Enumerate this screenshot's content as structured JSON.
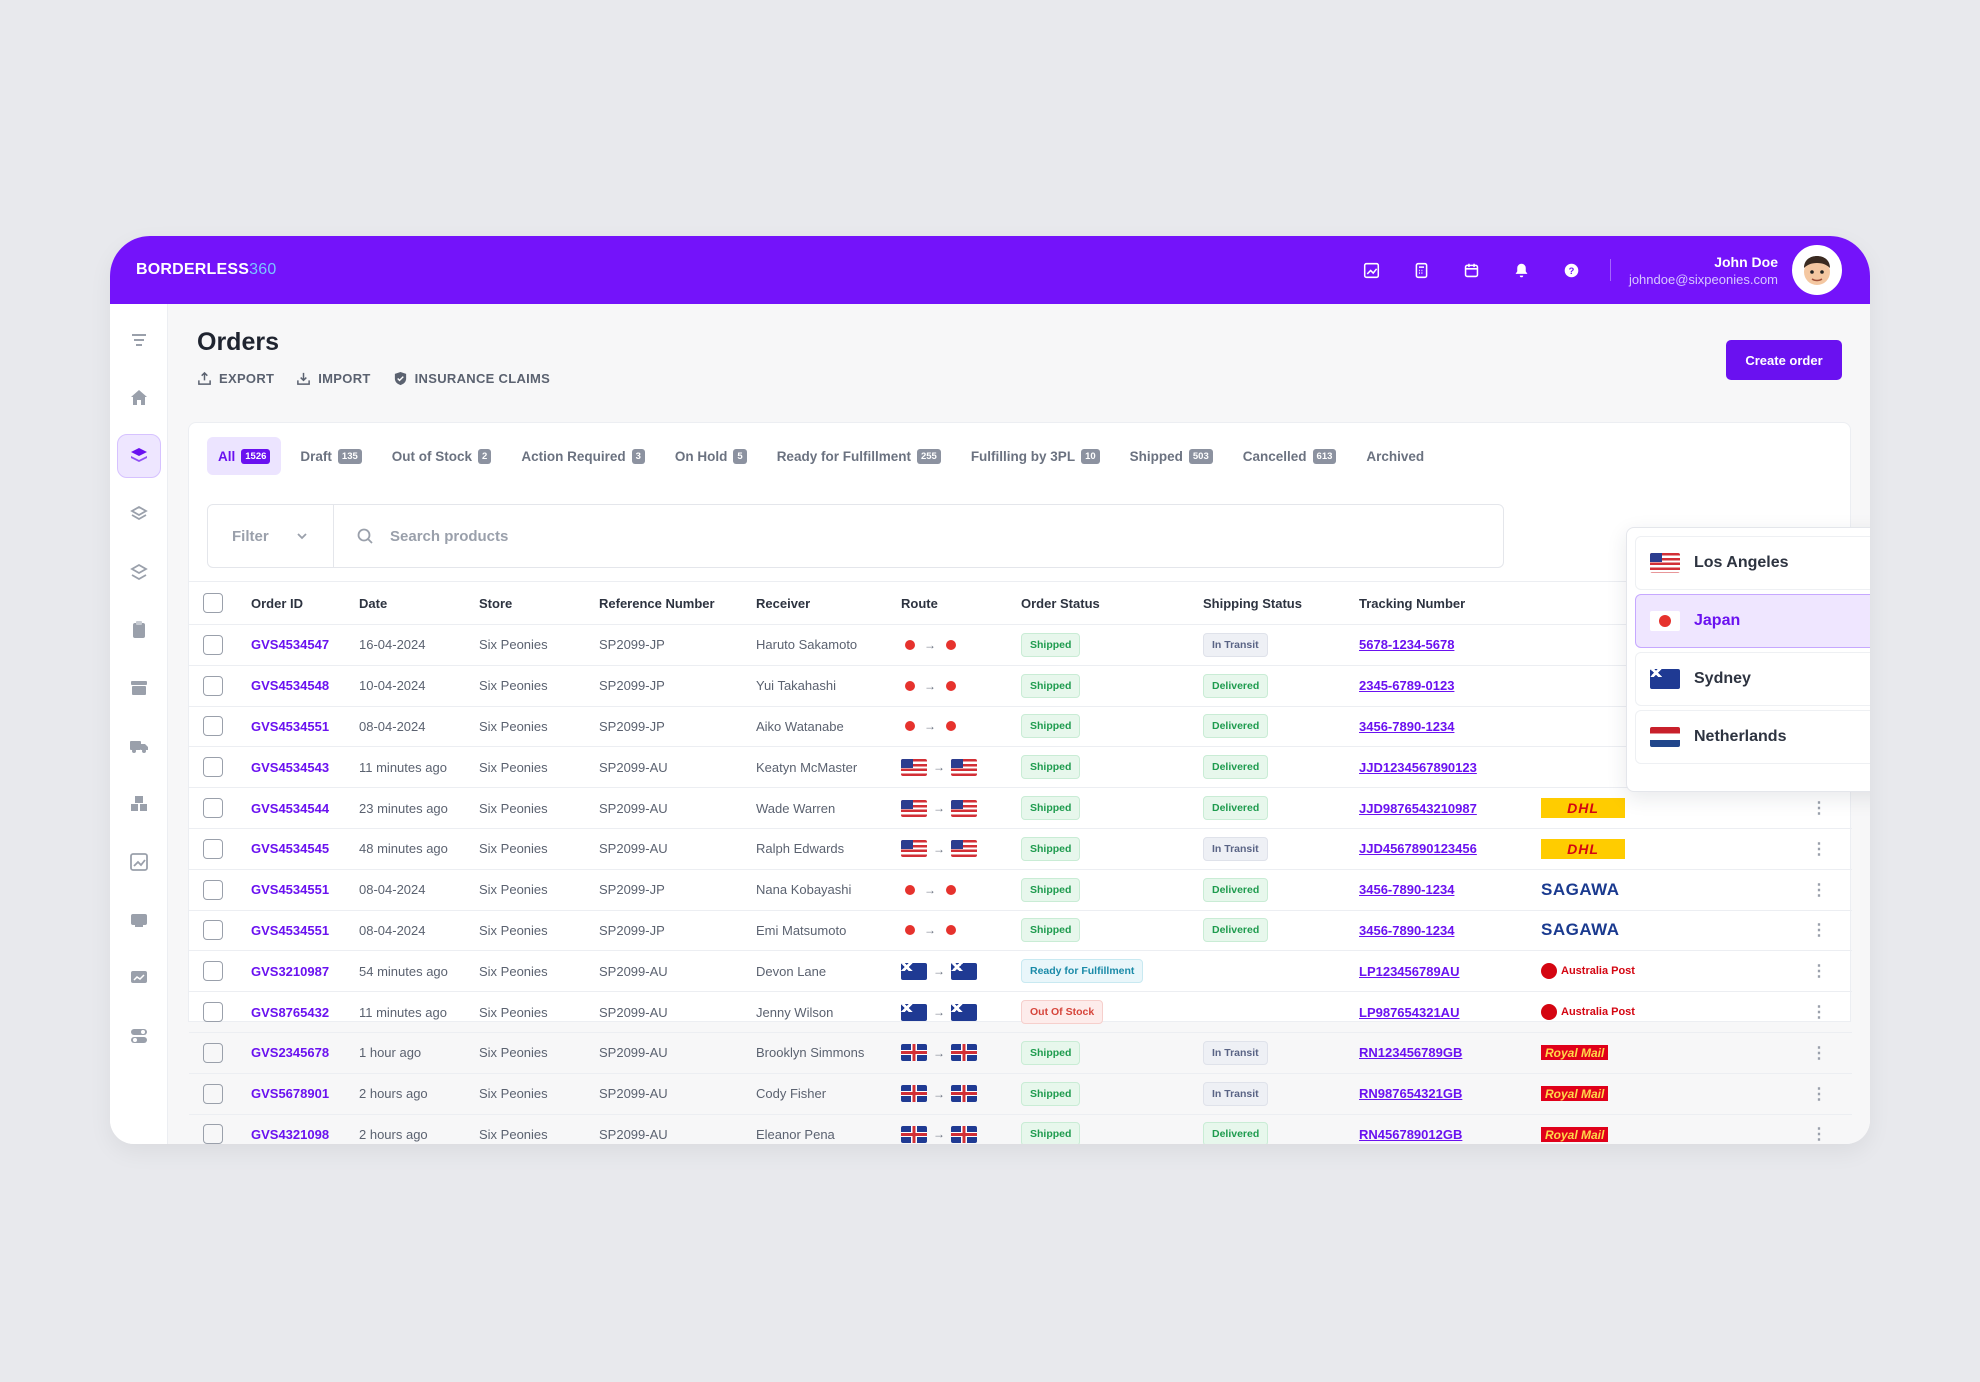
{
  "brand": {
    "name": "BORDERLESS",
    "suffix": "360"
  },
  "user": {
    "name": "John Doe",
    "email": "johndoe@sixpeonies.com"
  },
  "page": {
    "title": "Orders",
    "create_label": "Create order"
  },
  "actions": [
    {
      "label": "EXPORT",
      "icon": "export-icon"
    },
    {
      "label": "IMPORT",
      "icon": "import-icon"
    },
    {
      "label": "INSURANCE CLAIMS",
      "icon": "shield-icon"
    }
  ],
  "tabs": [
    {
      "label": "All",
      "count": "1526",
      "active": true
    },
    {
      "label": "Draft",
      "count": "135"
    },
    {
      "label": "Out of Stock",
      "count": "2"
    },
    {
      "label": "Action Required",
      "count": "3"
    },
    {
      "label": "On Hold",
      "count": "5"
    },
    {
      "label": "Ready for Fulfillment",
      "count": "255"
    },
    {
      "label": "Fulfilling by 3PL",
      "count": "10"
    },
    {
      "label": "Shipped",
      "count": "503"
    },
    {
      "label": "Cancelled",
      "count": "613"
    },
    {
      "label": "Archived",
      "count": ""
    }
  ],
  "filter": {
    "label": "Filter",
    "search_placeholder": "Search products"
  },
  "columns": [
    "Order ID",
    "Date",
    "Store",
    "Reference Number",
    "Receiver",
    "Route",
    "Order Status",
    "Shipping Status",
    "Tracking Number"
  ],
  "rows": [
    {
      "id": "GVS4534547",
      "date": "16-04-2024",
      "store": "Six Peonies",
      "ref": "SP2099-JP",
      "receiver": "Haruto Sakamoto",
      "flag": "jp",
      "status": "Shipped",
      "shipping": "In Transit",
      "tracking": "5678-1234-5678",
      "carrier": ""
    },
    {
      "id": "GVS4534548",
      "date": "10-04-2024",
      "store": "Six Peonies",
      "ref": "SP2099-JP",
      "receiver": "Yui Takahashi",
      "flag": "jp",
      "status": "Shipped",
      "shipping": "Delivered",
      "tracking": "2345-6789-0123",
      "carrier": ""
    },
    {
      "id": "GVS4534551",
      "date": "08-04-2024",
      "store": "Six Peonies",
      "ref": "SP2099-JP",
      "receiver": "Aiko Watanabe",
      "flag": "jp",
      "status": "Shipped",
      "shipping": "Delivered",
      "tracking": "3456-7890-1234",
      "carrier": ""
    },
    {
      "id": "GVS4534543",
      "date": "11 minutes ago",
      "store": "Six Peonies",
      "ref": "SP2099-AU",
      "receiver": "Keatyn McMaster",
      "flag": "us",
      "status": "Shipped",
      "shipping": "Delivered",
      "tracking": "JJD1234567890123",
      "carrier": ""
    },
    {
      "id": "GVS4534544",
      "date": "23 minutes ago",
      "store": "Six Peonies",
      "ref": "SP2099-AU",
      "receiver": "Wade Warren",
      "flag": "us",
      "status": "Shipped",
      "shipping": "Delivered",
      "tracking": "JJD9876543210987",
      "carrier": "DHL"
    },
    {
      "id": "GVS4534545",
      "date": "48 minutes ago",
      "store": "Six Peonies",
      "ref": "SP2099-AU",
      "receiver": "Ralph Edwards",
      "flag": "us",
      "status": "Shipped",
      "shipping": "In Transit",
      "tracking": "JJD4567890123456",
      "carrier": "DHL"
    },
    {
      "id": "GVS4534551",
      "date": "08-04-2024",
      "store": "Six Peonies",
      "ref": "SP2099-JP",
      "receiver": "Nana Kobayashi",
      "flag": "jp",
      "status": "Shipped",
      "shipping": "Delivered",
      "tracking": "3456-7890-1234",
      "carrier": "SAGAWA"
    },
    {
      "id": "GVS4534551",
      "date": "08-04-2024",
      "store": "Six Peonies",
      "ref": "SP2099-JP",
      "receiver": "Emi Matsumoto",
      "flag": "jp",
      "status": "Shipped",
      "shipping": "Delivered",
      "tracking": "3456-7890-1234",
      "carrier": "SAGAWA"
    },
    {
      "id": "GVS3210987",
      "date": "54 minutes ago",
      "store": "Six Peonies",
      "ref": "SP2099-AU",
      "receiver": "Devon Lane",
      "flag": "au",
      "status": "Ready for Fulfillment",
      "shipping": "",
      "tracking": "LP123456789AU",
      "carrier": "Australia Post"
    },
    {
      "id": "GVS8765432",
      "date": "11 minutes ago",
      "store": "Six Peonies",
      "ref": "SP2099-AU",
      "receiver": "Jenny Wilson",
      "flag": "au",
      "status": "Out Of Stock",
      "shipping": "",
      "tracking": "LP987654321AU",
      "carrier": "Australia Post"
    },
    {
      "id": "GVS2345678",
      "date": "1 hour ago",
      "store": "Six Peonies",
      "ref": "SP2099-AU",
      "receiver": "Brooklyn Simmons",
      "flag": "gb",
      "status": "Shipped",
      "shipping": "In Transit",
      "tracking": "RN123456789GB",
      "carrier": "Royal Mail"
    },
    {
      "id": "GVS5678901",
      "date": "2 hours ago",
      "store": "Six Peonies",
      "ref": "SP2099-AU",
      "receiver": "Cody Fisher",
      "flag": "gb",
      "status": "Shipped",
      "shipping": "In Transit",
      "tracking": "RN987654321GB",
      "carrier": "Royal Mail"
    },
    {
      "id": "GVS4321098",
      "date": "2 hours ago",
      "store": "Six Peonies",
      "ref": "SP2099-AU",
      "receiver": "Eleanor Pena",
      "flag": "gb",
      "status": "Shipped",
      "shipping": "Delivered",
      "tracking": "RN456789012GB",
      "carrier": "Royal Mail"
    }
  ],
  "dropdown": [
    {
      "label": "Los Angeles",
      "flag": "us"
    },
    {
      "label": "Japan",
      "flag": "jp",
      "selected": true
    },
    {
      "label": "Sydney",
      "flag": "au"
    },
    {
      "label": "Netherlands",
      "flag": "nl"
    }
  ],
  "colors": {
    "brand": "#7413fa",
    "accent": "#6a11f0"
  }
}
